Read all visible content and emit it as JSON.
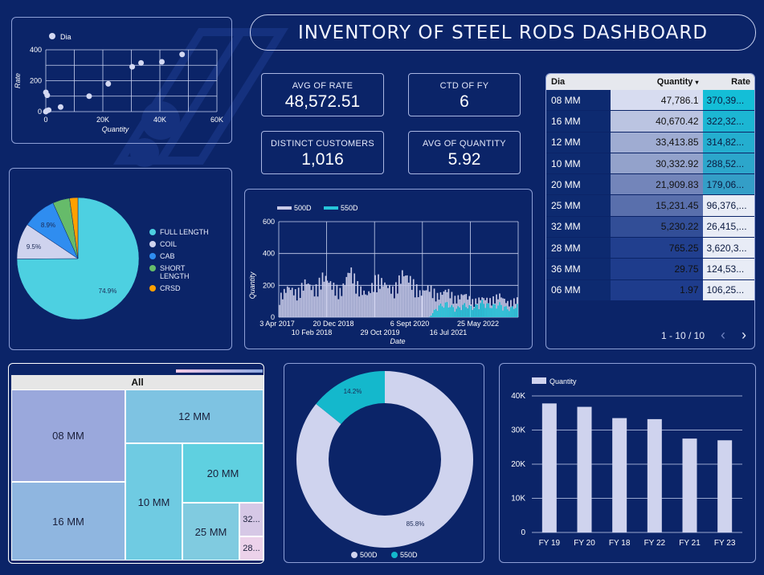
{
  "title": "INVENTORY OF STEEL RODS DASHBOARD",
  "kpis": {
    "avg_rate": {
      "label": "AVG OF RATE",
      "value": "48,572.51"
    },
    "ctd_fy": {
      "label": "CTD OF FY",
      "value": "6"
    },
    "distinct_customers": {
      "label": "DISTINCT CUSTOMERS",
      "value": "1,016"
    },
    "avg_quantity": {
      "label": "AVG OF QUANTITY",
      "value": "5.92"
    }
  },
  "scatter": {
    "legend": "Dia",
    "xlabel": "Quantity",
    "ylabel": "Rate",
    "xticks": [
      "0",
      "20K",
      "40K",
      "60K"
    ],
    "yticks": [
      "400",
      "200",
      "0"
    ],
    "xlim": [
      0,
      60000
    ],
    "ylim": [
      0,
      400
    ],
    "color": "#d3d8f2"
  },
  "pie": {
    "legend": [
      {
        "label": "FULL LENGTH",
        "color": "#4dd0e1"
      },
      {
        "label": "COIL",
        "color": "#cfd3ee"
      },
      {
        "label": "CAB",
        "color": "#2f8df0"
      },
      {
        "label": "SHORT LENGTH",
        "color": "#66bb6a"
      },
      {
        "label": "CRSD",
        "color": "#ffa000"
      }
    ],
    "labels": {
      "full": "74.9%",
      "coil": "9.5%",
      "cab": "8.9%"
    }
  },
  "line": {
    "legend": [
      "500D",
      "550D"
    ],
    "colors": [
      "#c9cbe8",
      "#26c6da"
    ],
    "xlabel": "Date",
    "ylabel": "Quantity",
    "yticks": [
      "600",
      "400",
      "200",
      "0"
    ],
    "xticks_top": [
      "3 Apr 2017",
      "20 Dec 2018",
      "6 Sept 2020",
      "25 May 2022"
    ],
    "xticks_bottom": [
      "10 Feb 2018",
      "29 Oct 2019",
      "16 Jul 2021"
    ]
  },
  "table": {
    "headers": {
      "dia": "Dia",
      "qty": "Quantity",
      "sort": "▾",
      "rate": "Rate"
    },
    "rows": [
      {
        "dia": "08 MM",
        "qty": "47,786.1",
        "rate": "370,39..."
      },
      {
        "dia": "16 MM",
        "qty": "40,670.42",
        "rate": "322,32..."
      },
      {
        "dia": "12 MM",
        "qty": "33,413.85",
        "rate": "314,82..."
      },
      {
        "dia": "10 MM",
        "qty": "30,332.92",
        "rate": "288,52..."
      },
      {
        "dia": "20 MM",
        "qty": "21,909.83",
        "rate": "179,06..."
      },
      {
        "dia": "25 MM",
        "qty": "15,231.45",
        "rate": "96,376,..."
      },
      {
        "dia": "32 MM",
        "qty": "5,230.22",
        "rate": "26,415,..."
      },
      {
        "dia": "28 MM",
        "qty": "765.25",
        "rate": "3,620,3..."
      },
      {
        "dia": "36 MM",
        "qty": "29.75",
        "rate": "124,53..."
      },
      {
        "dia": "06 MM",
        "qty": "1.97",
        "rate": "106,25..."
      }
    ],
    "pager": "1 - 10 / 10",
    "prev": "‹",
    "next": "›"
  },
  "treemap": {
    "header": "All",
    "cells": [
      {
        "label": "08 MM",
        "color": "#9aa8dc"
      },
      {
        "label": "16 MM",
        "color": "#8fb6e0"
      },
      {
        "label": "12 MM",
        "color": "#7ec3e2"
      },
      {
        "label": "10 MM",
        "color": "#6fcbe2"
      },
      {
        "label": "20 MM",
        "color": "#5fd0e0"
      },
      {
        "label": "25 MM",
        "color": "#80cbe0"
      },
      {
        "label": "32...",
        "color": "#d6c8e6"
      },
      {
        "label": "28...",
        "color": "#ecd2ea"
      }
    ]
  },
  "donut": {
    "legend": [
      {
        "label": "500D",
        "color": "#cfd3ee"
      },
      {
        "label": "550D",
        "color": "#14b8cc"
      }
    ],
    "labels": {
      "a": "85.8%",
      "b": "14.2%"
    }
  },
  "bar": {
    "legend": "Quantity",
    "color": "#cfd3ee",
    "yticks": [
      "40K",
      "30K",
      "20K",
      "10K",
      "0"
    ]
  },
  "chart_data": [
    {
      "type": "scatter",
      "title": "",
      "xlabel": "Quantity",
      "ylabel": "Rate",
      "xlim": [
        0,
        60000
      ],
      "ylim": [
        0,
        400
      ],
      "series": [
        {
          "name": "Dia",
          "points": [
            [
              0,
              0
            ],
            [
              300,
              5
            ],
            [
              1000,
              10
            ],
            [
              5200,
              30
            ],
            [
              15200,
              100
            ],
            [
              21900,
              180
            ],
            [
              30300,
              290
            ],
            [
              33400,
              315
            ],
            [
              40700,
              322
            ],
            [
              47800,
              370
            ],
            [
              500,
              106
            ],
            [
              30,
              125
            ]
          ]
        }
      ]
    },
    {
      "type": "pie",
      "title": "",
      "categories": [
        "FULL LENGTH",
        "COIL",
        "CAB",
        "SHORT LENGTH",
        "CRSD"
      ],
      "values": [
        74.9,
        9.5,
        8.9,
        4.5,
        2.2
      ]
    },
    {
      "type": "area",
      "title": "",
      "xlabel": "Date",
      "ylabel": "Quantity",
      "ylim": [
        0,
        600
      ],
      "x_range": [
        "3 Apr 2017",
        "25 May 2022"
      ],
      "series": [
        {
          "name": "500D",
          "values": [
            140,
            220,
            170,
            260,
            190,
            300,
            230,
            180,
            350,
            210,
            160,
            280,
            240,
            190,
            320,
            260,
            170,
            220,
            150,
            200,
            130,
            170,
            110,
            140,
            120,
            160,
            100,
            130
          ]
        },
        {
          "name": "550D",
          "values": [
            0,
            0,
            0,
            0,
            0,
            0,
            0,
            0,
            0,
            0,
            0,
            0,
            0,
            0,
            0,
            0,
            0,
            0,
            80,
            100,
            60,
            90,
            70,
            110,
            80,
            95,
            60,
            85
          ]
        }
      ]
    },
    {
      "type": "table",
      "columns": [
        "Dia",
        "Quantity",
        "Rate"
      ],
      "rows": [
        [
          "08 MM",
          "47,786.1",
          "370,39..."
        ],
        [
          "16 MM",
          "40,670.42",
          "322,32..."
        ],
        [
          "12 MM",
          "33,413.85",
          "314,82..."
        ],
        [
          "10 MM",
          "30,332.92",
          "288,52..."
        ],
        [
          "20 MM",
          "21,909.83",
          "179,06..."
        ],
        [
          "25 MM",
          "15,231.45",
          "96,376,..."
        ],
        [
          "32 MM",
          "5,230.22",
          "26,415,..."
        ],
        [
          "28 MM",
          "765.25",
          "3,620,3..."
        ],
        [
          "36 MM",
          "29.75",
          "124,53..."
        ],
        [
          "06 MM",
          "1.97",
          "106,25..."
        ]
      ]
    },
    {
      "type": "pie",
      "title": "",
      "categories": [
        "500D",
        "550D"
      ],
      "values": [
        85.8,
        14.2
      ]
    },
    {
      "type": "bar",
      "title": "",
      "categories": [
        "FY 19",
        "FY 20",
        "FY 18",
        "FY 22",
        "FY 21",
        "FY 23"
      ],
      "series": [
        {
          "name": "Quantity",
          "values": [
            37800,
            36800,
            33500,
            33200,
            27500,
            27000
          ]
        }
      ],
      "ylim": [
        0,
        40000
      ]
    }
  ]
}
